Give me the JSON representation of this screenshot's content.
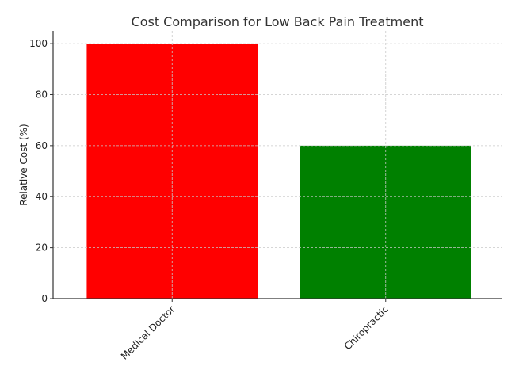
{
  "chart_data": {
    "type": "bar",
    "title": "Cost Comparison for Low Back Pain Treatment",
    "xlabel": "",
    "ylabel": "Relative Cost (%)",
    "categories": [
      "Medical Doctor",
      "Chiropractic"
    ],
    "values": [
      100,
      60
    ],
    "colors": [
      "#ff0000",
      "#008000"
    ],
    "ylim": [
      0,
      105
    ],
    "yticks": [
      0,
      20,
      40,
      60,
      80,
      100
    ],
    "grid": true,
    "legend": "none"
  }
}
